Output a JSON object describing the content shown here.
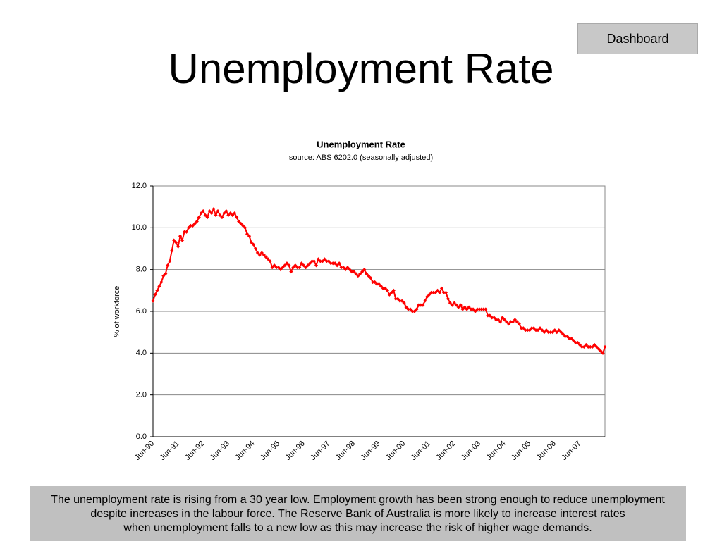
{
  "slide": {
    "button": "Dashboard",
    "title": "Unemployment Rate",
    "caption": [
      "The unemployment rate is rising from a 30 year low.  Employment growth has been strong enough to reduce unemployment",
      "despite increases in the labour force.  The Reserve Bank of Australia is more likely to increase interest rates",
      "when unemployment falls to a new low as this may increase the risk of higher wage demands."
    ]
  },
  "chart_data": {
    "type": "line",
    "title": "Unemployment Rate",
    "subtitle": "source: ABS 6202.0 (seasonally adjusted)",
    "y_label": "% of workforce",
    "categories": [
      "Jun-90",
      null,
      null,
      null,
      null,
      null,
      null,
      null,
      null,
      null,
      null,
      null,
      "Jun-91",
      null,
      null,
      null,
      null,
      null,
      null,
      null,
      null,
      null,
      null,
      null,
      "Jun-92",
      null,
      null,
      null,
      null,
      null,
      null,
      null,
      null,
      null,
      null,
      null,
      "Jun-93",
      null,
      null,
      null,
      null,
      null,
      null,
      null,
      null,
      null,
      null,
      null,
      "Jun-94",
      null,
      null,
      null,
      null,
      null,
      null,
      null,
      null,
      null,
      null,
      null,
      "Jun-95",
      null,
      null,
      null,
      null,
      null,
      null,
      null,
      null,
      null,
      null,
      null,
      "Jun-96",
      null,
      null,
      null,
      null,
      null,
      null,
      null,
      null,
      null,
      null,
      null,
      "Jun-97",
      null,
      null,
      null,
      null,
      null,
      null,
      null,
      null,
      null,
      null,
      null,
      "Jun-98",
      null,
      null,
      null,
      null,
      null,
      null,
      null,
      null,
      null,
      null,
      null,
      "Jun-99",
      null,
      null,
      null,
      null,
      null,
      null,
      null,
      null,
      null,
      null,
      null,
      "Jun-00",
      null,
      null,
      null,
      null,
      null,
      null,
      null,
      null,
      null,
      null,
      null,
      "Jun-01",
      null,
      null,
      null,
      null,
      null,
      null,
      null,
      null,
      null,
      null,
      null,
      "Jun-02",
      null,
      null,
      null,
      null,
      null,
      null,
      null,
      null,
      null,
      null,
      null,
      "Jun-03",
      null,
      null,
      null,
      null,
      null,
      null,
      null,
      null,
      null,
      null,
      null,
      "Jun-04",
      null,
      null,
      null,
      null,
      null,
      null,
      null,
      null,
      null,
      null,
      null,
      "Jun-05",
      null,
      null,
      null,
      null,
      null,
      null,
      null,
      null,
      null,
      null,
      null,
      "Jun-06",
      null,
      null,
      null,
      null,
      null,
      null,
      null,
      null,
      null,
      null,
      null,
      "Jun-07",
      null,
      null,
      null,
      null,
      null,
      null,
      null,
      null,
      null,
      null,
      null,
      null
    ],
    "values": [
      6.5,
      6.8,
      7.0,
      7.2,
      7.4,
      7.7,
      7.8,
      8.2,
      8.4,
      8.9,
      9.4,
      9.3,
      9.1,
      9.6,
      9.4,
      9.8,
      9.8,
      10.0,
      10.1,
      10.1,
      10.2,
      10.3,
      10.5,
      10.7,
      10.8,
      10.6,
      10.5,
      10.8,
      10.7,
      10.9,
      10.6,
      10.8,
      10.6,
      10.5,
      10.7,
      10.8,
      10.6,
      10.7,
      10.6,
      10.7,
      10.5,
      10.3,
      10.2,
      10.1,
      10.0,
      9.7,
      9.6,
      9.3,
      9.2,
      9.0,
      8.8,
      8.7,
      8.8,
      8.7,
      8.6,
      8.5,
      8.4,
      8.1,
      8.2,
      8.1,
      8.1,
      8.0,
      8.1,
      8.2,
      8.3,
      8.2,
      7.9,
      8.1,
      8.2,
      8.1,
      8.1,
      8.3,
      8.2,
      8.1,
      8.2,
      8.3,
      8.4,
      8.4,
      8.2,
      8.5,
      8.4,
      8.4,
      8.5,
      8.4,
      8.4,
      8.3,
      8.3,
      8.3,
      8.2,
      8.3,
      8.1,
      8.1,
      8.0,
      8.1,
      8.0,
      7.9,
      7.9,
      7.8,
      7.7,
      7.8,
      7.9,
      8.0,
      7.8,
      7.7,
      7.6,
      7.4,
      7.4,
      7.3,
      7.3,
      7.2,
      7.1,
      7.1,
      7.0,
      6.8,
      6.9,
      7.0,
      6.6,
      6.6,
      6.5,
      6.5,
      6.4,
      6.2,
      6.1,
      6.1,
      6.0,
      6.0,
      6.1,
      6.3,
      6.3,
      6.3,
      6.5,
      6.7,
      6.8,
      6.9,
      6.9,
      6.9,
      7.0,
      6.9,
      7.1,
      6.9,
      6.9,
      6.6,
      6.4,
      6.3,
      6.4,
      6.3,
      6.2,
      6.3,
      6.1,
      6.2,
      6.1,
      6.2,
      6.1,
      6.1,
      6.0,
      6.1,
      6.1,
      6.1,
      6.1,
      6.1,
      5.8,
      5.8,
      5.7,
      5.7,
      5.6,
      5.6,
      5.5,
      5.7,
      5.6,
      5.5,
      5.4,
      5.5,
      5.5,
      5.6,
      5.5,
      5.4,
      5.2,
      5.2,
      5.1,
      5.1,
      5.1,
      5.2,
      5.2,
      5.1,
      5.1,
      5.2,
      5.1,
      5.0,
      5.1,
      5.0,
      5.0,
      5.0,
      5.1,
      5.0,
      5.1,
      5.0,
      4.9,
      4.8,
      4.8,
      4.7,
      4.7,
      4.6,
      4.5,
      4.5,
      4.4,
      4.3,
      4.3,
      4.4,
      4.3,
      4.3,
      4.3,
      4.4,
      4.3,
      4.2,
      4.1,
      4.0,
      4.3
    ],
    "color": "#ff0000",
    "ylim": [
      0,
      12
    ],
    "yticks": [
      {
        "value": 0,
        "label": "0.0"
      },
      {
        "value": 2,
        "label": "2.0"
      },
      {
        "value": 4,
        "label": "4.0"
      },
      {
        "value": 6,
        "label": "6.0"
      },
      {
        "value": 8,
        "label": "8.0"
      },
      {
        "value": 10,
        "label": "10.0"
      },
      {
        "value": 12,
        "label": "12.0"
      }
    ],
    "grid": true
  }
}
